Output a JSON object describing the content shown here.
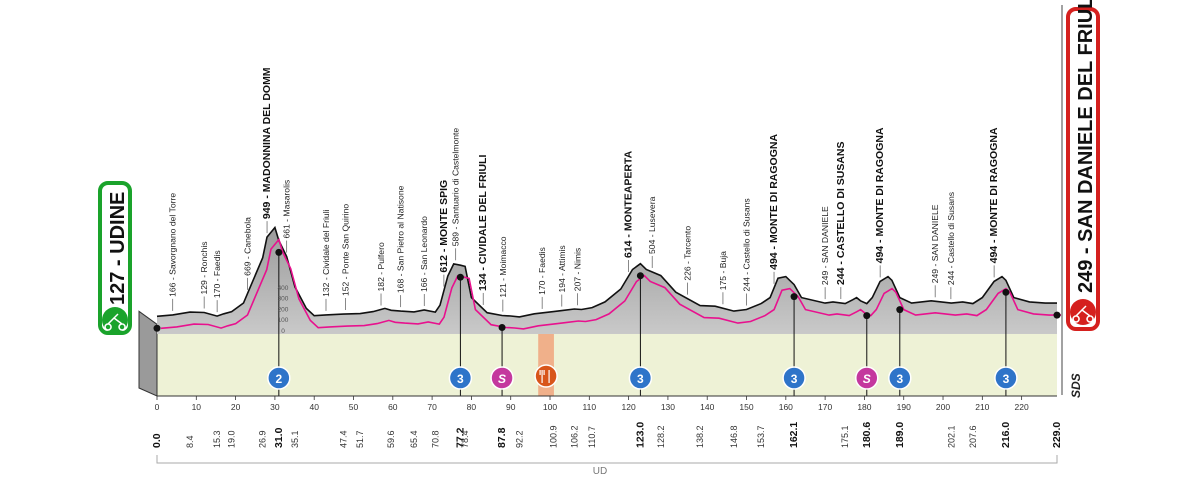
{
  "chart_data": {
    "type": "area",
    "xlim": [
      0,
      229
    ],
    "start": {
      "altitude": "127",
      "name": "UDINE"
    },
    "finish": {
      "altitude": "249",
      "name": "SAN DANIELE DEL FRIULI"
    },
    "x_ticks": [
      "0",
      "10",
      "20",
      "30",
      "40",
      "50",
      "60",
      "70",
      "80",
      "90",
      "100",
      "110",
      "120",
      "130",
      "140",
      "150",
      "160",
      "170",
      "180",
      "190",
      "200",
      "210",
      "220"
    ],
    "y_ticks": [
      "0",
      "100",
      "200",
      "300",
      "400"
    ],
    "profile_km": [
      0,
      4,
      8.4,
      12,
      15.3,
      17,
      19,
      22,
      24,
      26.9,
      28,
      30,
      31,
      33,
      35.1,
      38,
      40,
      43,
      47.4,
      51.7,
      55,
      58,
      59.6,
      62,
      65.4,
      68,
      70.8,
      72,
      74,
      75.5,
      77.2,
      78.4,
      80,
      84,
      87.8,
      90,
      92.2,
      96,
      100.9,
      103,
      106.2,
      108,
      110.7,
      114,
      118,
      121,
      123,
      124.5,
      128.2,
      132,
      138.2,
      142,
      146.8,
      150,
      153.7,
      156,
      158,
      160,
      162.1,
      164,
      170,
      172,
      175.1,
      177,
      178,
      179,
      180.6,
      182,
      184,
      186,
      187,
      189,
      192,
      197,
      202.1,
      205,
      207.6,
      210,
      213,
      215,
      216,
      218,
      222,
      226,
      229
    ],
    "profile_alt": [
      127,
      140,
      166,
      162,
      129,
      150,
      170,
      250,
      420,
      669,
      860,
      949,
      830,
      680,
      400,
      200,
      132,
      140,
      147,
      152,
      170,
      200,
      182,
      175,
      168,
      185,
      166,
      230,
      500,
      612,
      600,
      589,
      300,
      160,
      134,
      130,
      121,
      150,
      170,
      180,
      194,
      190,
      207,
      260,
      380,
      560,
      614,
      560,
      504,
      350,
      226,
      220,
      175,
      190,
      244,
      300,
      480,
      494,
      420,
      300,
      249,
      260,
      244,
      280,
      300,
      270,
      244,
      300,
      450,
      494,
      460,
      300,
      249,
      270,
      249,
      260,
      244,
      300,
      450,
      494,
      460,
      300,
      260,
      249,
      249
    ],
    "stations": [
      {
        "km": 4,
        "name": "166 - Savorgnano del Torre",
        "bold": false
      },
      {
        "km": 12,
        "name": "129 - Ronchis",
        "bold": false
      },
      {
        "km": 15.3,
        "name": "170 - Faedis",
        "bold": false
      },
      {
        "km": 23,
        "name": "669 - Canebola",
        "bold": false
      },
      {
        "km": 28,
        "name": "949 - MADONNINA DEL DOMM",
        "bold": true
      },
      {
        "km": 33,
        "name": "661 - Masarolis",
        "bold": false
      },
      {
        "km": 43,
        "name": "132 - Cividale del Friuli",
        "bold": false
      },
      {
        "km": 48,
        "name": "152 - Ponte San Quirino",
        "bold": false
      },
      {
        "km": 57,
        "name": "182 - Pulfero",
        "bold": false
      },
      {
        "km": 62,
        "name": "168 - San Pietro al Natisone",
        "bold": false
      },
      {
        "km": 68,
        "name": "166 - San Leonardo",
        "bold": false
      },
      {
        "km": 73,
        "name": "612 - MONTE SPIG",
        "bold": true
      },
      {
        "km": 76,
        "name": "589 - Santuario di Castelmonte",
        "bold": false
      },
      {
        "km": 83,
        "name": "134 - CIVIDALE DEL FRIULI",
        "bold": true
      },
      {
        "km": 88,
        "name": "121 - Moimacco",
        "bold": false
      },
      {
        "km": 98,
        "name": "170 - Faedis",
        "bold": false
      },
      {
        "km": 103,
        "name": "194 - Attimis",
        "bold": false
      },
      {
        "km": 107,
        "name": "207 - Nimis",
        "bold": false
      },
      {
        "km": 120,
        "name": "614 - MONTEAPERTA",
        "bold": true
      },
      {
        "km": 126,
        "name": "504 - Lusevera",
        "bold": false
      },
      {
        "km": 135,
        "name": "226 - Tarcento",
        "bold": false
      },
      {
        "km": 144,
        "name": "175 - Buja",
        "bold": false
      },
      {
        "km": 150,
        "name": "244 - Castello di Susans",
        "bold": false
      },
      {
        "km": 157,
        "name": "494 - MONTE DI RAGOGNA",
        "bold": true
      },
      {
        "km": 170,
        "name": "249 - SAN DANIELE",
        "bold": false
      },
      {
        "km": 174,
        "name": "244 - CASTELLO DI SUSANS",
        "bold": true
      },
      {
        "km": 184,
        "name": "494 - MONTE DI RAGOGNA",
        "bold": true
      },
      {
        "km": 198,
        "name": "249 - SAN DANIELE",
        "bold": false
      },
      {
        "km": 202,
        "name": "244 - Castello di Susans",
        "bold": false
      },
      {
        "km": 213,
        "name": "494 - MONTE DI RAGOGNA",
        "bold": true
      }
    ],
    "km_marks": [
      {
        "km": 0,
        "label": "0.0",
        "bold": true
      },
      {
        "km": 8.4,
        "label": "8.4",
        "bold": false
      },
      {
        "km": 15.3,
        "label": "15.3",
        "bold": false
      },
      {
        "km": 19.0,
        "label": "19.0",
        "bold": false
      },
      {
        "km": 26.9,
        "label": "26.9",
        "bold": false
      },
      {
        "km": 31.0,
        "label": "31.0",
        "bold": true
      },
      {
        "km": 35.1,
        "label": "35.1",
        "bold": false
      },
      {
        "km": 47.4,
        "label": "47.4",
        "bold": false
      },
      {
        "km": 51.7,
        "label": "51.7",
        "bold": false
      },
      {
        "km": 59.6,
        "label": "59.6",
        "bold": false
      },
      {
        "km": 65.4,
        "label": "65.4",
        "bold": false
      },
      {
        "km": 70.8,
        "label": "70.8",
        "bold": false
      },
      {
        "km": 77.2,
        "label": "77.2",
        "bold": true
      },
      {
        "km": 78.4,
        "label": "78.4",
        "bold": false
      },
      {
        "km": 87.8,
        "label": "87.8",
        "bold": true
      },
      {
        "km": 92.2,
        "label": "92.2",
        "bold": false
      },
      {
        "km": 100.9,
        "label": "100.9",
        "bold": false
      },
      {
        "km": 106.2,
        "label": "106.2",
        "bold": false
      },
      {
        "km": 110.7,
        "label": "110.7",
        "bold": false
      },
      {
        "km": 123.0,
        "label": "123.0",
        "bold": true
      },
      {
        "km": 128.2,
        "label": "128.2",
        "bold": false
      },
      {
        "km": 138.2,
        "label": "138.2",
        "bold": false
      },
      {
        "km": 146.8,
        "label": "146.8",
        "bold": false
      },
      {
        "km": 153.7,
        "label": "153.7",
        "bold": false
      },
      {
        "km": 162.1,
        "label": "162.1",
        "bold": true
      },
      {
        "km": 175.1,
        "label": "175.1",
        "bold": false
      },
      {
        "km": 180.6,
        "label": "180.6",
        "bold": true
      },
      {
        "km": 189.0,
        "label": "189.0",
        "bold": true
      },
      {
        "km": 202.1,
        "label": "202.1",
        "bold": false
      },
      {
        "km": 207.6,
        "label": "207.6",
        "bold": false
      },
      {
        "km": 216.0,
        "label": "216.0",
        "bold": true
      },
      {
        "km": 229.0,
        "label": "229.0",
        "bold": true
      }
    ],
    "climbs": [
      {
        "km": 31.0,
        "category": "2"
      },
      {
        "km": 77.2,
        "category": "3"
      },
      {
        "km": 123.0,
        "category": "3"
      },
      {
        "km": 162.1,
        "category": "3"
      },
      {
        "km": 189.0,
        "category": "3"
      },
      {
        "km": 216.0,
        "category": "3"
      }
    ],
    "sprints": [
      {
        "km": 87.8,
        "label": "S"
      },
      {
        "km": 180.6,
        "label": "S"
      }
    ],
    "feed_zone": {
      "from_km": 97,
      "to_km": 101
    },
    "region_label": "UD",
    "sponsor_logo": "SDS",
    "colors": {
      "profile_fill": "#a8a8a8",
      "profile_front": "#cfcfcf",
      "lowland_fill": "#eef2d6",
      "pink_line": "#e8118e",
      "climb_badge": "#2e74c9",
      "sprint_badge": "#c4389e",
      "feed_zone": "#f0a57c",
      "start_green": "#1aa32b",
      "finish_red": "#d5201e"
    }
  }
}
